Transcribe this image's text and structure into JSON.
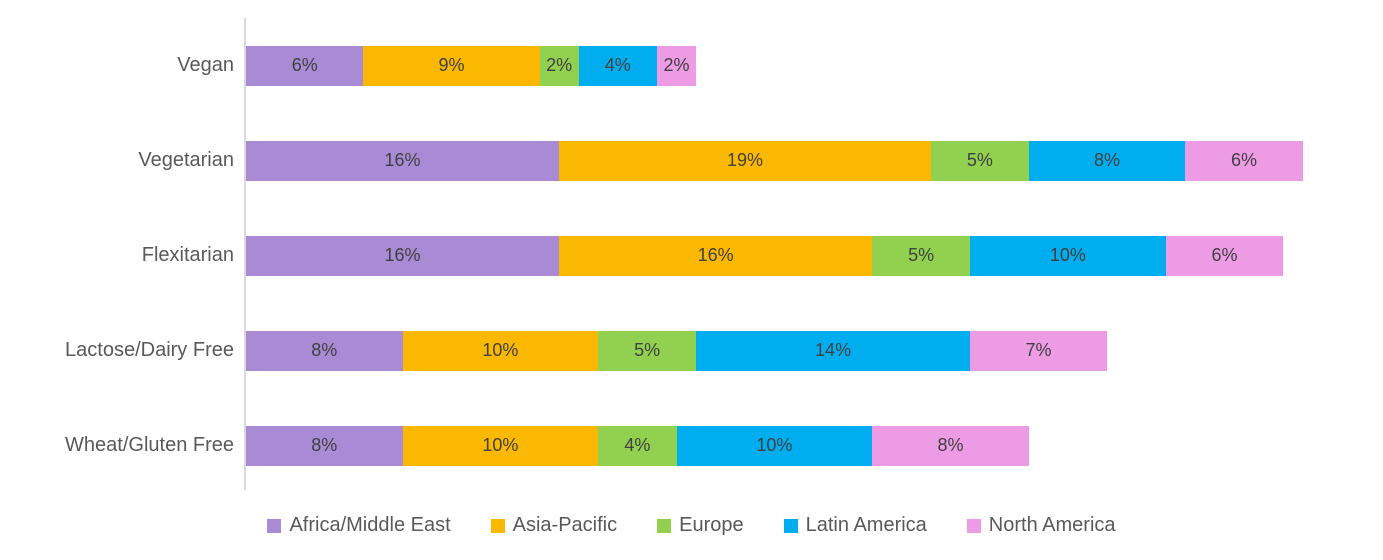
{
  "chart_data": {
    "type": "bar",
    "orientation": "horizontal",
    "stacked": true,
    "title": "",
    "xlabel": "",
    "ylabel": "",
    "value_suffix": "%",
    "grid": false,
    "x_axis_visible": false,
    "legend_position": "bottom",
    "categories": [
      "Vegan",
      "Vegetarian",
      "Flexitarian",
      "Lactose/Dairy Free",
      "Wheat/Gluten Free"
    ],
    "series": [
      {
        "name": "Africa/Middle East",
        "color": "#A88BD4",
        "values": [
          6,
          16,
          16,
          8,
          8
        ]
      },
      {
        "name": "Asia-Pacific",
        "color": "#FBB800",
        "values": [
          9,
          19,
          16,
          10,
          10
        ]
      },
      {
        "name": "Europe",
        "color": "#92D050",
        "values": [
          2,
          5,
          5,
          5,
          4
        ]
      },
      {
        "name": "Latin America",
        "color": "#00AEEF",
        "values": [
          4,
          8,
          10,
          14,
          10
        ]
      },
      {
        "name": "North America",
        "color": "#EC9BE4",
        "values": [
          2,
          6,
          6,
          7,
          8
        ]
      }
    ],
    "totals": [
      23,
      54,
      53,
      44,
      40
    ],
    "axis_line_color": "#D9D9D9",
    "data_label_color": "#404040",
    "category_label_color": "#595959"
  }
}
